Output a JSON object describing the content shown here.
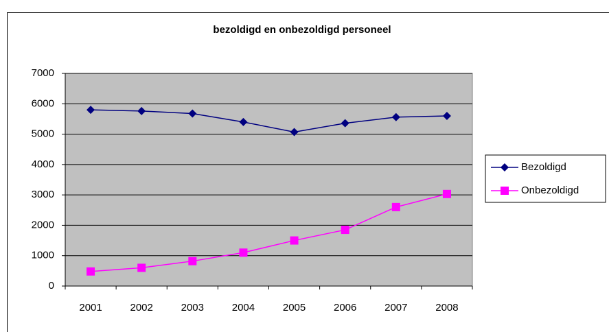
{
  "chart_data": {
    "type": "line",
    "title": "bezoldigd en onbezoldigd personeel",
    "categories": [
      "2001",
      "2002",
      "2003",
      "2004",
      "2005",
      "2006",
      "2007",
      "2008"
    ],
    "series": [
      {
        "name": "Bezoldigd",
        "color": "#000080",
        "marker": "diamond",
        "values": [
          5800,
          5760,
          5680,
          5400,
          5070,
          5360,
          5560,
          5600
        ]
      },
      {
        "name": "Onbezoldigd",
        "color": "#ff00ff",
        "marker": "square",
        "values": [
          480,
          600,
          820,
          1100,
          1500,
          1850,
          2600,
          3030
        ]
      }
    ],
    "ylim": [
      0,
      7000
    ],
    "yticks": [
      0,
      1000,
      2000,
      3000,
      4000,
      5000,
      6000,
      7000
    ],
    "grid": true,
    "legend": "right",
    "plot_background": "#c0c0c0"
  }
}
